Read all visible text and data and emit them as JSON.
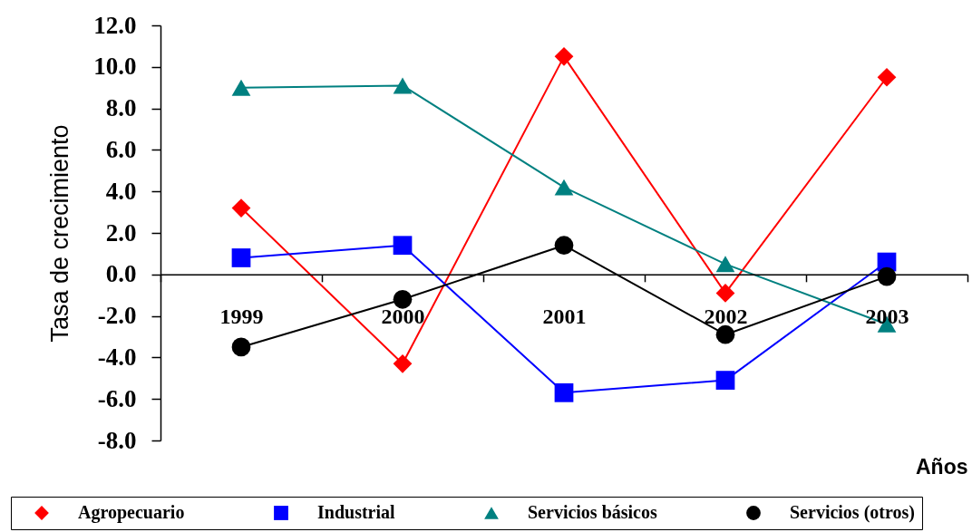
{
  "chart_data": {
    "type": "line",
    "xlabel": "Años",
    "ylabel": "Tasa de crecimiento",
    "categories": [
      "1999",
      "2000",
      "2001",
      "2002",
      "2003"
    ],
    "series": [
      {
        "name": "Agropecuario",
        "color": "#ff0000",
        "marker": "diamond",
        "values": [
          3.2,
          -4.3,
          10.5,
          -0.9,
          9.5
        ]
      },
      {
        "name": "Industrial",
        "color": "#0000ff",
        "marker": "square",
        "values": [
          0.8,
          1.4,
          -5.7,
          -5.1,
          0.6
        ]
      },
      {
        "name": "Servicios básicos",
        "color": "#008080",
        "marker": "triangle",
        "values": [
          9.0,
          9.1,
          4.2,
          0.5,
          -2.4
        ]
      },
      {
        "name": "Servicios (otros)",
        "color": "#000000",
        "marker": "circle",
        "values": [
          -3.5,
          -1.2,
          1.4,
          -2.9,
          -0.1
        ]
      }
    ],
    "ylim": [
      -8,
      12
    ],
    "yticks": [
      {
        "value": -8,
        "label": "-8.0"
      },
      {
        "value": -6,
        "label": "-6.0"
      },
      {
        "value": -4,
        "label": "-4.0"
      },
      {
        "value": -2,
        "label": "-2.0"
      },
      {
        "value": 0,
        "label": "0.0"
      },
      {
        "value": 2,
        "label": "2.0"
      },
      {
        "value": 4,
        "label": "4.0"
      },
      {
        "value": 6,
        "label": "6.0"
      },
      {
        "value": 8,
        "label": "8.0"
      },
      {
        "value": 10,
        "label": "10.0"
      },
      {
        "value": 12,
        "label": "12.0"
      }
    ],
    "legend": "bottom"
  }
}
